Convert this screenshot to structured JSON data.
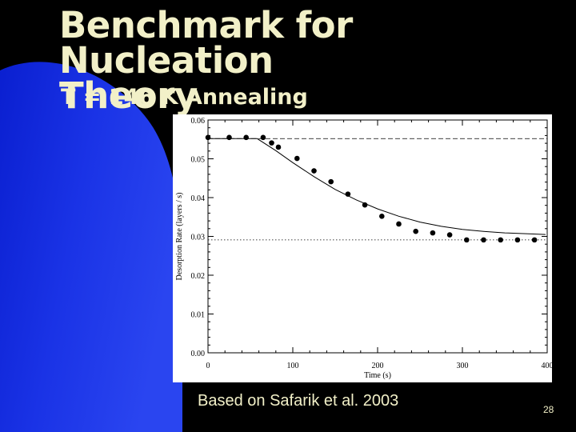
{
  "slide": {
    "title_line1": "Benchmark for Nucleation",
    "title_line2": "Theory",
    "subtitle": "T = 146 K Annealing",
    "caption": "Based on Safarik et al. 2003",
    "slide_number": "28"
  },
  "colors": {
    "background": "#000000",
    "accent_blue": "#1a33e6",
    "title_text": "#f2f0c8",
    "plot_bg": "#ffffff"
  },
  "chart_data": {
    "type": "scatter",
    "xlabel": "Time (s)",
    "ylabel": "Desorption Rate (layers / s)",
    "xlim": [
      0,
      400
    ],
    "ylim": [
      0,
      0.06
    ],
    "x_ticks": [
      0,
      100,
      200,
      300,
      400
    ],
    "y_ticks": [
      0.0,
      0.01,
      0.02,
      0.03,
      0.04,
      0.05,
      0.06
    ],
    "grid": false,
    "points": {
      "x": [
        0,
        25,
        45,
        65,
        75,
        83,
        105,
        125,
        145,
        165,
        185,
        205,
        225,
        245,
        265,
        285,
        305,
        325,
        345,
        365,
        385
      ],
      "y": [
        0.0555,
        0.0555,
        0.0555,
        0.0555,
        0.0541,
        0.053,
        0.0501,
        0.0469,
        0.0441,
        0.0409,
        0.0381,
        0.0352,
        0.0332,
        0.0313,
        0.0309,
        0.0304,
        0.0291,
        0.0291,
        0.0291,
        0.0291,
        0.0291
      ]
    },
    "model_curve": {
      "x": [
        0,
        58,
        80,
        100,
        125,
        150,
        175,
        200,
        225,
        250,
        275,
        300,
        325,
        350,
        375,
        398
      ],
      "y": [
        0.0552,
        0.0552,
        0.0521,
        0.049,
        0.0454,
        0.0421,
        0.0394,
        0.0371,
        0.0352,
        0.0337,
        0.0326,
        0.0318,
        0.0313,
        0.0309,
        0.0307,
        0.0305
      ]
    },
    "reference_lines": [
      {
        "style": "dashed",
        "y": 0.0552
      },
      {
        "style": "dotted",
        "y": 0.0291
      }
    ]
  }
}
